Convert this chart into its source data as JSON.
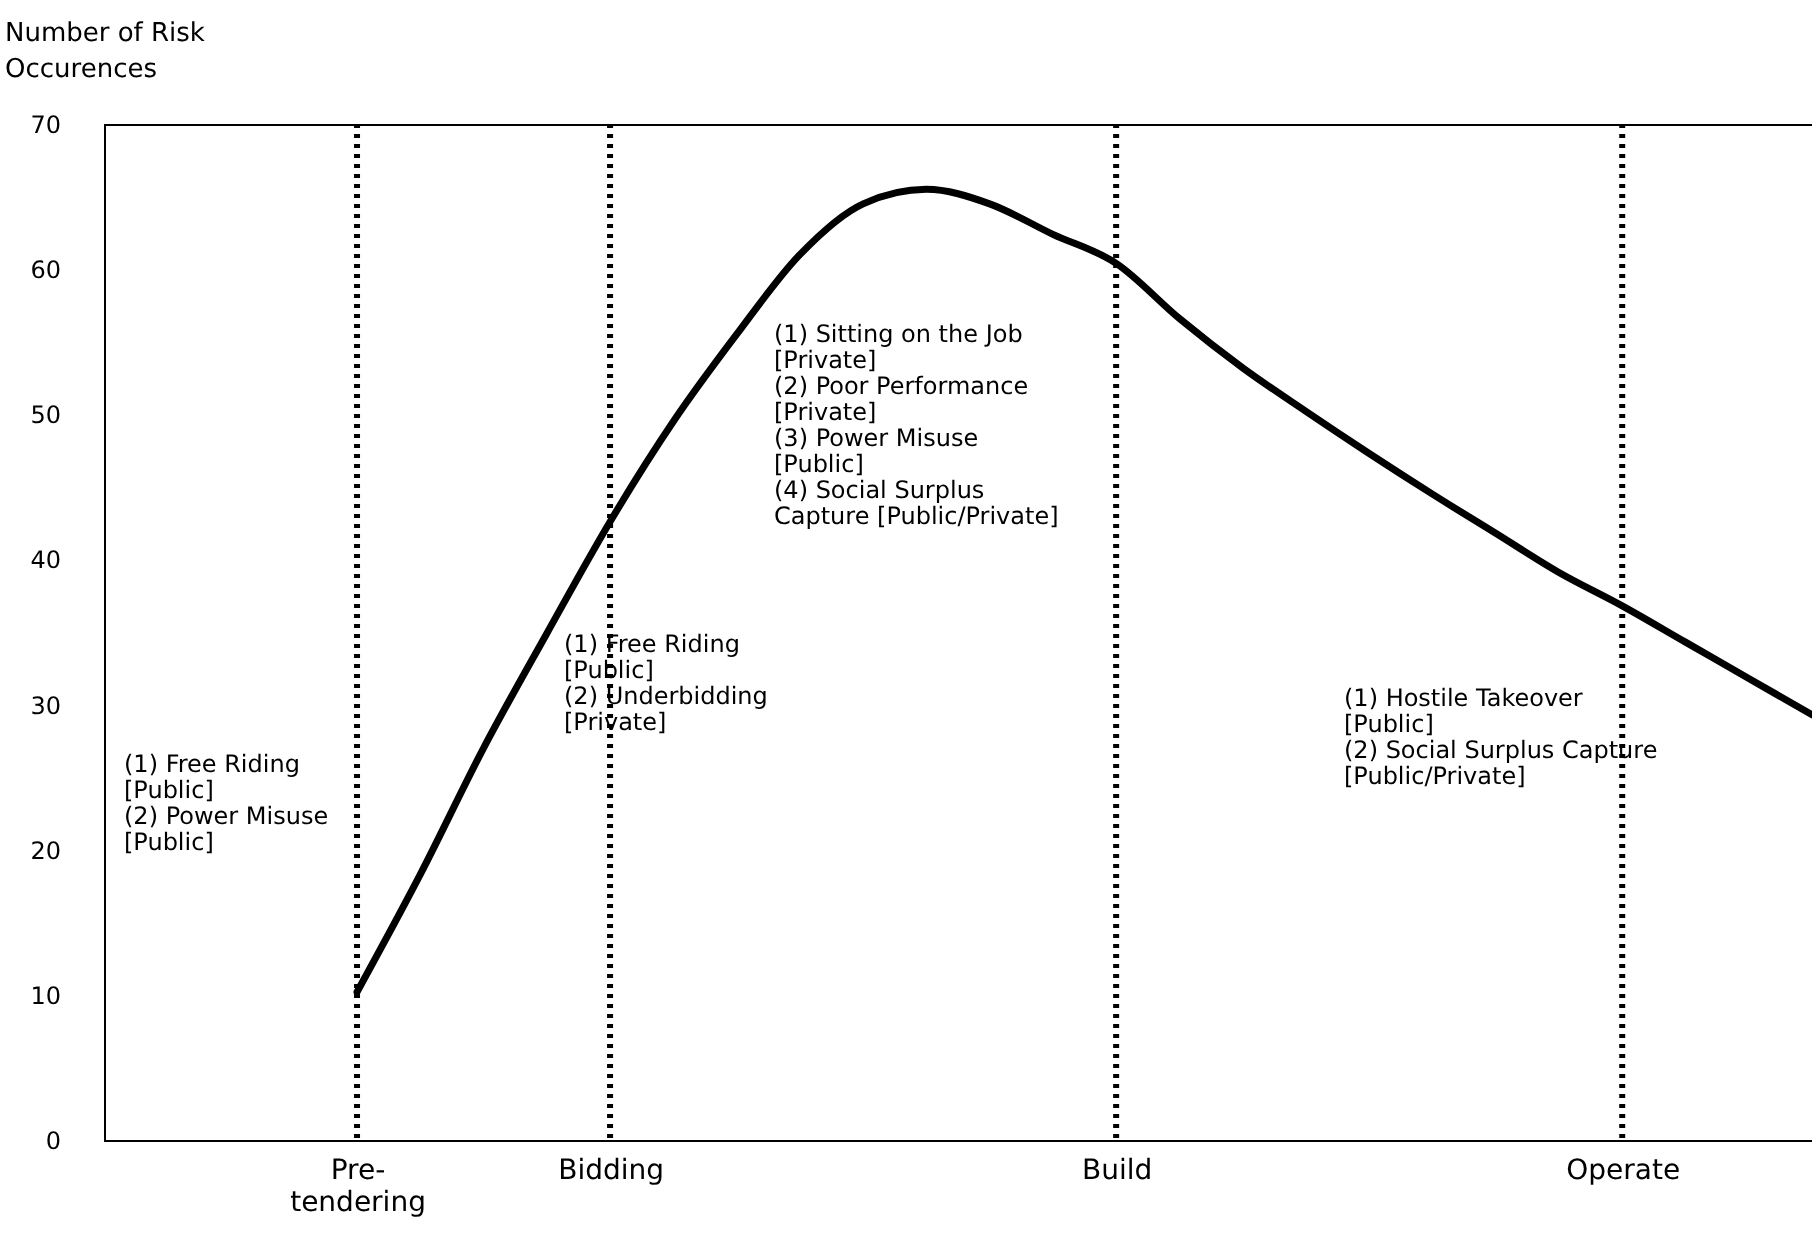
{
  "chart_data": {
    "type": "line",
    "ylabel": "Number of Risk Occurences",
    "categories": [
      null,
      null,
      null,
      null,
      "Pre-tendering",
      null,
      null,
      null,
      "Bidding",
      null,
      null,
      null,
      null,
      null,
      null,
      null,
      "Build",
      null,
      null,
      null,
      null,
      null,
      null,
      null,
      "Operate",
      null,
      null,
      null
    ],
    "series": [
      {
        "color": "#000000",
        "values": [
          null,
          null,
          null,
          null,
          10.2,
          18.3,
          27,
          34.9,
          42.6,
          49.5,
          55.5,
          61,
          64.5,
          65.5,
          64.5,
          62.4,
          60.4,
          56.6,
          53.2,
          50.2,
          47.3,
          44.5,
          41.8,
          39.1,
          36.8,
          34.3,
          31.8,
          29.3
        ]
      }
    ],
    "ylim": [
      0,
      70
    ],
    "yticks": [
      0,
      10,
      20,
      30,
      40,
      50,
      60,
      70
    ],
    "marker": "none",
    "line_style": "solid",
    "ref_lines": [
      {
        "axis": "x",
        "value": "Pre-tendering",
        "color": "#000000",
        "line_style": "dotted"
      },
      {
        "axis": "x",
        "value": "Bidding",
        "color": "#000000",
        "line_style": "dotted"
      },
      {
        "axis": "x",
        "value": "Build",
        "color": "#000000",
        "line_style": "dotted"
      },
      {
        "axis": "x",
        "value": "Operate",
        "color": "#000000",
        "line_style": "dotted"
      }
    ],
    "annotations": [
      "(1) Free Riding\n     [Public]\n(2) Power Misuse\n     [Public]",
      "(1) Free Riding\n     [Public]\n(2) Underbidding\n     [Private]",
      "(1) Sitting on the Job\n     [Private]\n(2) Poor Performance\n     [Private]\n(3) Power Misuse\n     [Public]\n(4) Social Surplus\nCapture [Public/Private]",
      "(1) Hostile Takeover\n     [Public]\n(2) Social Surplus Capture\n     [Public/Private]"
    ]
  }
}
